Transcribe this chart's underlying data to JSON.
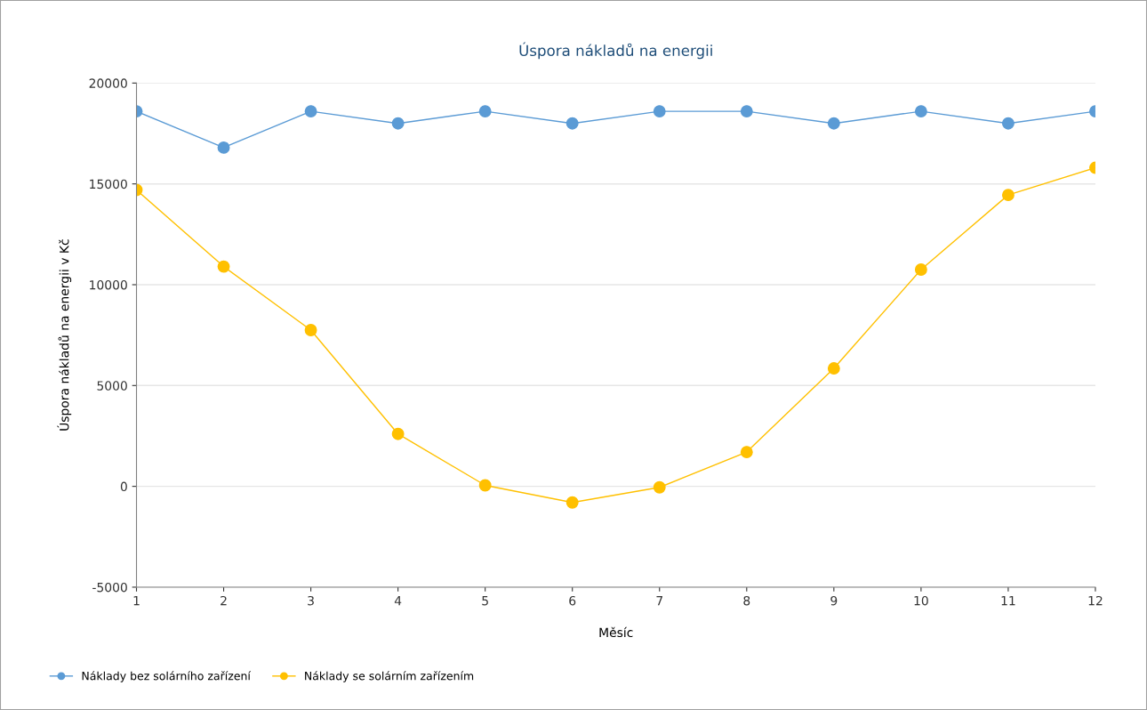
{
  "chart_data": {
    "type": "line",
    "title": "Úspora nákladů na energii",
    "xlabel": "Měsíc",
    "ylabel": "Úspora nákladů na energii v Kč",
    "x": [
      1,
      2,
      3,
      4,
      5,
      6,
      7,
      8,
      9,
      10,
      11,
      12
    ],
    "series": [
      {
        "name": "Náklady bez solárního zařízení",
        "color": "#5b9bd5",
        "values": [
          18600,
          16800,
          18600,
          18000,
          18600,
          18000,
          18600,
          18600,
          18000,
          18600,
          18000,
          18600
        ]
      },
      {
        "name": "Náklady se solárním zařízením",
        "color": "#ffc000",
        "values": [
          14700,
          10900,
          7750,
          2600,
          50,
          -800,
          -50,
          1700,
          5850,
          10750,
          14450,
          15800
        ]
      }
    ],
    "xlim": [
      1,
      12
    ],
    "xticks": [
      1,
      2,
      3,
      4,
      5,
      6,
      7,
      8,
      9,
      10,
      11,
      12
    ],
    "ylim": [
      -5000,
      20000
    ],
    "yticks": [
      -5000,
      0,
      5000,
      10000,
      15000,
      20000
    ],
    "grid": "y",
    "legend": "bottom left",
    "marker": "circle",
    "line_style": "solid"
  }
}
